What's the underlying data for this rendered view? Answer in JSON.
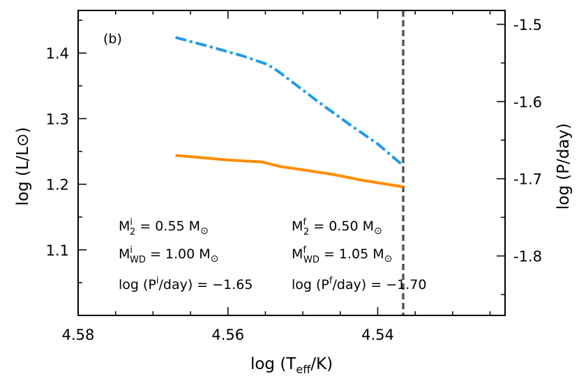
{
  "chart_data": {
    "type": "line",
    "panel_label": "(b)",
    "xlabel": "log (T_eff/K)",
    "ylabel_left": "log (L/L⊙)",
    "ylabel_right": "log (P/day)",
    "xlim": [
      4.58,
      4.523
    ],
    "x_reversed": true,
    "ylim_left": [
      1.0,
      1.465
    ],
    "ylim_right": [
      -1.877,
      -1.482
    ],
    "x_ticks": [
      {
        "value": 4.58,
        "label": "4.58"
      },
      {
        "value": 4.56,
        "label": "4.56"
      },
      {
        "value": 4.54,
        "label": "4.54"
      }
    ],
    "y_ticks_left": [
      {
        "value": 1.1,
        "label": "1.1"
      },
      {
        "value": 1.2,
        "label": "1.2"
      },
      {
        "value": 1.3,
        "label": "1.3"
      },
      {
        "value": 1.4,
        "label": "1.4"
      }
    ],
    "y_ticks_right": [
      {
        "value": -1.8,
        "label": "-1.8"
      },
      {
        "value": -1.7,
        "label": "-1.7"
      },
      {
        "value": -1.6,
        "label": "-1.6"
      },
      {
        "value": -1.5,
        "label": "-1.5"
      }
    ],
    "series": [
      {
        "axis": "left",
        "color": "#ff8c00",
        "style": "solid",
        "x": [
          4.567,
          4.56,
          4.5555,
          4.554,
          4.553,
          4.55,
          4.546,
          4.542,
          4.5366
        ],
        "y": [
          1.244,
          1.237,
          1.234,
          1.23,
          1.227,
          1.222,
          1.215,
          1.206,
          1.196
        ]
      },
      {
        "axis": "right",
        "color": "#1e9be9",
        "style": "dashdot",
        "x": [
          4.567,
          4.562,
          4.558,
          4.555,
          4.554,
          4.553,
          4.548,
          4.544,
          4.54,
          4.5366
        ],
        "y": [
          -1.517,
          -1.53,
          -1.541,
          -1.551,
          -1.556,
          -1.563,
          -1.6,
          -1.628,
          -1.655,
          -1.683
        ]
      }
    ],
    "vline": {
      "x": 4.5366,
      "color": "#555555",
      "style": "dashed"
    },
    "annotations": {
      "left": [
        {
          "main": "M",
          "sup": "i",
          "sub": "2",
          "rest": " = 0.55 M",
          "rest_sub": "⊙"
        },
        {
          "main": "M",
          "sup": "i",
          "sub": "WD",
          "rest": " = 1.00 M",
          "rest_sub": "⊙"
        },
        {
          "main": "log (P",
          "sup": "i",
          "sub": "",
          "rest": "/day) = −1.65",
          "rest_sub": ""
        }
      ],
      "right": [
        {
          "main": "M",
          "sup": "f",
          "sub": "2",
          "rest": " = 0.50 M",
          "rest_sub": "⊙"
        },
        {
          "main": "M",
          "sup": "f",
          "sub": "WD",
          "rest": " = 1.05 M",
          "rest_sub": "⊙"
        },
        {
          "main": "log (P",
          "sup": "f",
          "sub": "",
          "rest": "/day) = −1.70",
          "rest_sub": ""
        }
      ]
    }
  }
}
